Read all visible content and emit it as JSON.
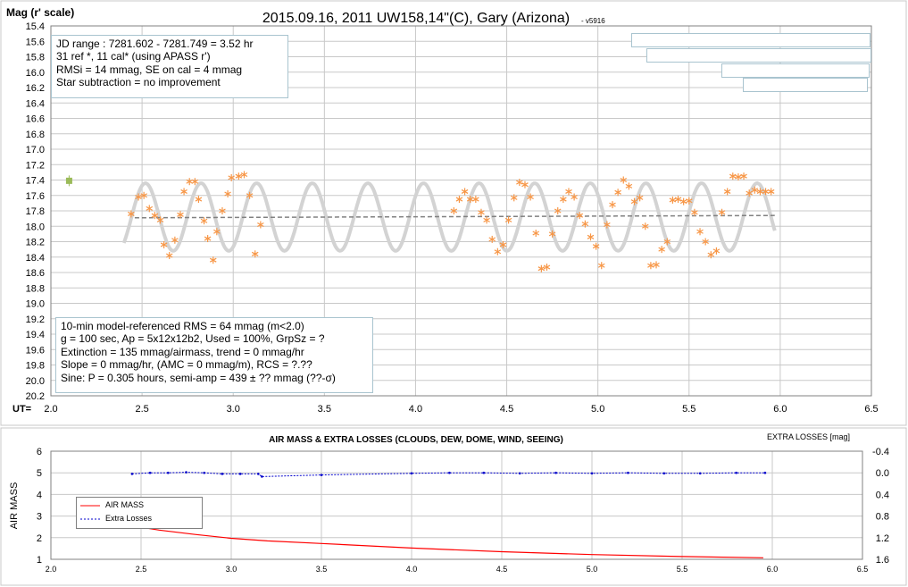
{
  "chart_data": [
    {
      "type": "scatter",
      "title": "2015.09.16, 2011 UW158,14\"(C), Gary (Arizona)",
      "version": "- v5916",
      "ylabel": "Mag (r' scale)",
      "xlabel": "UT=",
      "xlim": [
        2.0,
        6.5
      ],
      "ylim": [
        15.4,
        20.2
      ],
      "y_inverted": true,
      "x_ticks": [
        "2.0",
        "2.5",
        "3.0",
        "3.5",
        "4.0",
        "4.5",
        "5.0",
        "5.5",
        "6.0",
        "6.5"
      ],
      "y_ticks": [
        "15.4",
        "15.6",
        "15.8",
        "16.0",
        "16.2",
        "16.4",
        "16.6",
        "16.8",
        "17.0",
        "17.2",
        "17.4",
        "17.6",
        "17.8",
        "18.0",
        "18.2",
        "18.4",
        "18.6",
        "18.8",
        "19.0",
        "19.2",
        "19.4",
        "19.6",
        "19.8",
        "20.0",
        "20.2"
      ],
      "grid": true,
      "info_box_top": [
        "JD range : 7281.602 - 7281.749 = 3.52 hr",
        " 31 ref *, 11 cal* (using APASS r')",
        "RMSi = 14 mmag, SE on cal = 4 mmag",
        "Star subtraction = no improvement"
      ],
      "info_box_bottom": [
        "10-min model-referenced RMS = 64 mmag (m<2.0)",
        "g = 100 sec, Ap = 5x12x12b2, Used = 100%,  GrpSz = ?",
        "Extinction = 135 mmag/airmass, trend = 0 mmag/hr",
        "Slope = 0 mmag/hr, (AMC = 0 mmag/m), RCS = ?.??",
        "Sine: P = 0.305 hours, semi-amp = 439 ± ?? mmag (??-σ)"
      ],
      "reference_point": {
        "x": 2.1,
        "y": 17.41,
        "color": "#9bbb59"
      },
      "series": [
        {
          "name": "",
          "marker": "asterisk",
          "color": "#f79646",
          "x": [
            2.44,
            2.48,
            2.51,
            2.54,
            2.57,
            2.6,
            2.62,
            2.65,
            2.68,
            2.71,
            2.73,
            2.76,
            2.79,
            2.81,
            2.84,
            2.86,
            2.89,
            2.91,
            2.94,
            2.97,
            2.99,
            3.03,
            3.06,
            3.09,
            3.12,
            3.15,
            4.21,
            4.24,
            4.27,
            4.3,
            4.33,
            4.36,
            4.39,
            4.42,
            4.45,
            4.48,
            4.51,
            4.54,
            4.57,
            4.6,
            4.63,
            4.66,
            4.69,
            4.72,
            4.75,
            4.78,
            4.81,
            4.84,
            4.87,
            4.9,
            4.93,
            4.96,
            4.99,
            5.02,
            5.05,
            5.08,
            5.11,
            5.14,
            5.17,
            5.2,
            5.23,
            5.26,
            5.29,
            5.32,
            5.35,
            5.38,
            5.41,
            5.44,
            5.47,
            5.5,
            5.53,
            5.56,
            5.59,
            5.62,
            5.65,
            5.68,
            5.71,
            5.74,
            5.77,
            5.8,
            5.83,
            5.86,
            5.89,
            5.92,
            5.95
          ],
          "y": [
            17.84,
            17.62,
            17.6,
            17.77,
            17.86,
            17.92,
            18.24,
            18.38,
            18.18,
            17.85,
            17.55,
            17.42,
            17.42,
            17.65,
            17.93,
            18.16,
            18.44,
            18.07,
            17.8,
            17.58,
            17.37,
            17.35,
            17.33,
            17.6,
            18.36,
            17.98,
            17.8,
            17.65,
            17.55,
            17.65,
            17.65,
            17.82,
            17.92,
            18.17,
            18.33,
            18.24,
            17.92,
            17.63,
            17.43,
            17.46,
            17.62,
            18.09,
            18.55,
            18.53,
            18.1,
            17.8,
            17.65,
            17.55,
            17.62,
            17.86,
            17.97,
            18.14,
            18.26,
            18.51,
            17.98,
            17.72,
            17.56,
            17.4,
            17.48,
            17.68,
            17.63,
            18.0,
            18.51,
            18.5,
            18.3,
            18.2,
            17.66,
            17.65,
            17.68,
            17.67,
            17.82,
            18.07,
            18.2,
            18.37,
            18.32,
            17.82,
            17.55,
            17.35,
            17.36,
            17.35,
            17.57,
            17.53,
            17.55,
            17.55,
            17.55
          ]
        }
      ],
      "fit_curve": {
        "name": "",
        "color": "#d3d3d3",
        "period_hours": 0.305,
        "semi_amp_mag": 0.439,
        "mean": 17.88,
        "x_start": 2.4,
        "x_end": 5.97
      },
      "trend_line": {
        "name": "",
        "color": "#808080",
        "y_start": 17.89,
        "y_end": 17.86,
        "x_start": 2.46,
        "x_end": 5.97
      }
    },
    {
      "type": "line",
      "title": "AIR MASS & EXTRA LOSSES (CLOUDS, DEW, DOME, WIND, SEEING)",
      "ylabel": "AIR MASS",
      "y2label": "EXTRA LOSSES [mag]",
      "xlim": [
        2.0,
        6.5
      ],
      "ylim": [
        1,
        6
      ],
      "y2lim": [
        -0.4,
        1.6
      ],
      "x_ticks": [
        "2.0",
        "2.5",
        "3.0",
        "3.5",
        "4.0",
        "4.5",
        "5.0",
        "5.5",
        "6.0",
        "6.5"
      ],
      "y_ticks": [
        "6",
        "5",
        "4",
        "3",
        "2",
        "1"
      ],
      "y2_ticks": [
        "-0.4",
        "0.0",
        "0.4",
        "0.8",
        "1.2",
        "1.6"
      ],
      "legend_position": "top-left",
      "series": [
        {
          "name": "AIR MASS",
          "color": "#ff0000",
          "axis": "left",
          "x": [
            2.45,
            2.6,
            2.8,
            3.0,
            3.2,
            3.5,
            4.0,
            4.5,
            5.0,
            5.5,
            5.95
          ],
          "y": [
            2.55,
            2.35,
            2.15,
            1.97,
            1.85,
            1.73,
            1.52,
            1.35,
            1.22,
            1.13,
            1.07
          ]
        },
        {
          "name": "Extra Losses",
          "color": "#0000cc",
          "axis": "right",
          "x": [
            2.45,
            2.55,
            2.65,
            2.75,
            2.85,
            2.95,
            3.05,
            3.15,
            3.17,
            3.5,
            4.0,
            4.21,
            4.4,
            4.6,
            4.8,
            5.0,
            5.2,
            5.4,
            5.6,
            5.8,
            5.96
          ],
          "y": [
            0.02,
            0.0,
            0.0,
            -0.01,
            0.0,
            0.02,
            0.02,
            0.02,
            0.07,
            0.04,
            0.01,
            0.0,
            0.0,
            0.01,
            0.0,
            0.01,
            0.0,
            0.01,
            0.01,
            0.0,
            0.0
          ]
        }
      ]
    }
  ]
}
